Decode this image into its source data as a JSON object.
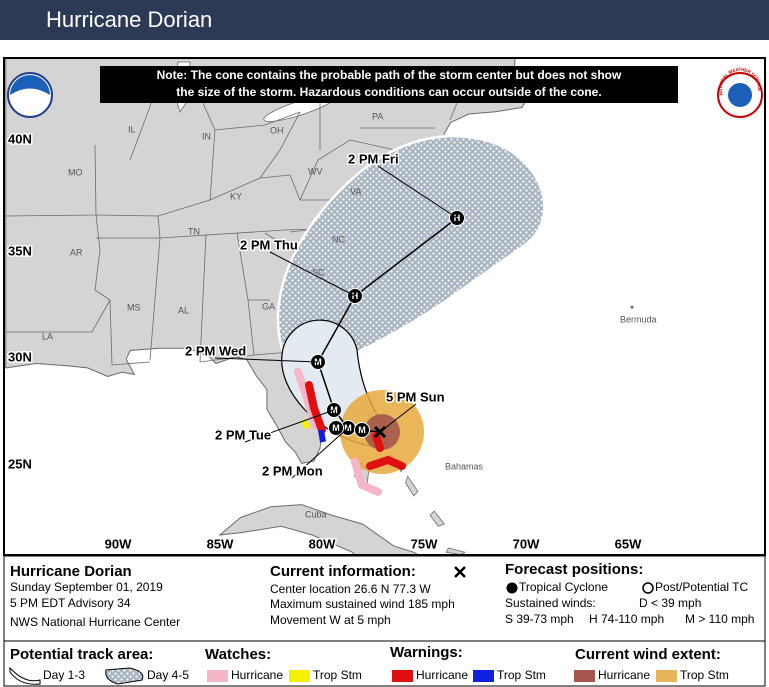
{
  "header": {
    "title": "Hurricane Dorian"
  },
  "map": {
    "note": [
      "Note: The cone contains the probable path of the storm center but does not show",
      "the size of the storm. Hazardous conditions can occur outside of the cone."
    ],
    "logos": {
      "noaa": "NOAA",
      "nws": "NATIONAL WEATHER SERVICE"
    },
    "lat_labels": [
      "40N",
      "35N",
      "30N",
      "25N"
    ],
    "lon_labels": [
      "90W",
      "85W",
      "80W",
      "75W",
      "70W",
      "65W"
    ],
    "place_labels": [
      "PA",
      "OH",
      "IN",
      "IL",
      "MO",
      "WV",
      "VA",
      "KY",
      "TN",
      "NC",
      "SC",
      "AR",
      "MS",
      "AL",
      "GA",
      "LA",
      "Bermuda",
      "Bahamas",
      "Cuba"
    ],
    "forecast_labels": [
      "2 PM Fri",
      "2 PM Thu",
      "2 PM Wed",
      "2 PM Tue",
      "2 PM Mon",
      "5 PM Sun"
    ],
    "marker_letters": [
      "H",
      "H",
      "M",
      "M",
      "M",
      "M",
      "M"
    ]
  },
  "legend": {
    "storm": [
      "Hurricane Dorian",
      "Sunday September 01, 2019",
      "5 PM EDT Advisory 34",
      "NWS National Hurricane Center"
    ],
    "current": {
      "title": "Current information:",
      "lines": [
        "Center location 26.6 N 77.3 W",
        "Maximum sustained wind 185 mph",
        "Movement W at 5 mph"
      ]
    },
    "forecast": {
      "title": "Forecast positions:",
      "tropical": "Tropical Cyclone",
      "post": "Post/Potential TC",
      "winds": "Sustained winds:",
      "d": "D < 39 mph",
      "s": "S 39-73 mph",
      "h": "H 74-110 mph",
      "m": "M > 110 mph"
    },
    "track_area": {
      "title": "Potential track area:",
      "day13": "Day 1-3",
      "day45": "Day 4-5"
    },
    "watches": {
      "title": "Watches:",
      "hurricane": "Hurricane",
      "trop": "Trop Stm"
    },
    "warnings": {
      "title": "Warnings:",
      "hurricane": "Hurricane",
      "trop": "Trop Stm"
    },
    "wind_extent": {
      "title": "Current wind extent:",
      "hurricane": "Hurricane",
      "trop": "Trop Stm"
    }
  }
}
